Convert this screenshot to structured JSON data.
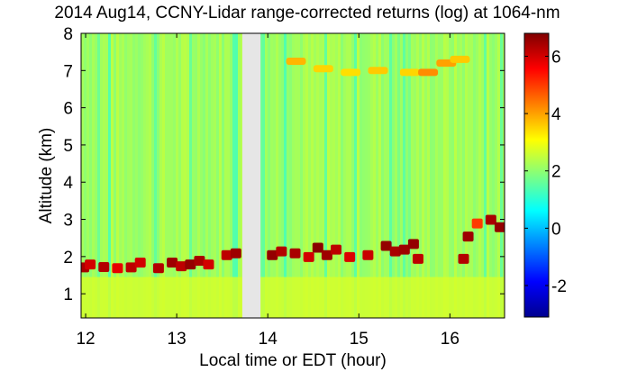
{
  "chart_data": {
    "type": "heatmap",
    "title": "2014 Aug14, CCNY-Lidar range-corrected returns (log) at 1064-nm",
    "xlabel": "Local time or EDT (hour)",
    "ylabel": "Altitude (km)",
    "xlim": [
      11.95,
      16.6
    ],
    "ylim": [
      0.35,
      8.0
    ],
    "xticks": [
      12,
      13,
      14,
      15,
      16
    ],
    "yticks": [
      1,
      2,
      3,
      4,
      5,
      6,
      7,
      8
    ],
    "colorbar": {
      "range": [
        -3.1,
        6.8
      ],
      "ticks": [
        -2,
        0,
        2,
        4,
        6
      ],
      "colormap": "jet"
    },
    "data_gap": {
      "x_start": 13.72,
      "x_end": 13.92,
      "color": "#e6e6e6"
    },
    "background_value": 2.2,
    "aerosol_layer": {
      "description_values": "boundary layer top with high returns",
      "segments": [
        {
          "x": 11.98,
          "y": 1.72,
          "value": 6.4
        },
        {
          "x": 12.05,
          "y": 1.8,
          "value": 6.0
        },
        {
          "x": 12.2,
          "y": 1.73,
          "value": 6.3
        },
        {
          "x": 12.35,
          "y": 1.7,
          "value": 5.8
        },
        {
          "x": 12.5,
          "y": 1.72,
          "value": 6.2
        },
        {
          "x": 12.6,
          "y": 1.85,
          "value": 6.0
        },
        {
          "x": 12.8,
          "y": 1.7,
          "value": 6.3
        },
        {
          "x": 12.95,
          "y": 1.85,
          "value": 6.5
        },
        {
          "x": 13.05,
          "y": 1.75,
          "value": 6.2
        },
        {
          "x": 13.15,
          "y": 1.8,
          "value": 6.6
        },
        {
          "x": 13.25,
          "y": 1.9,
          "value": 6.4
        },
        {
          "x": 13.35,
          "y": 1.8,
          "value": 6.0
        },
        {
          "x": 13.55,
          "y": 2.05,
          "value": 6.2
        },
        {
          "x": 13.65,
          "y": 2.1,
          "value": 6.5
        },
        {
          "x": 14.05,
          "y": 2.05,
          "value": 6.6
        },
        {
          "x": 14.15,
          "y": 2.15,
          "value": 6.3
        },
        {
          "x": 14.3,
          "y": 2.1,
          "value": 6.4
        },
        {
          "x": 14.45,
          "y": 2.0,
          "value": 6.0
        },
        {
          "x": 14.55,
          "y": 2.25,
          "value": 6.7
        },
        {
          "x": 14.65,
          "y": 2.05,
          "value": 6.5
        },
        {
          "x": 14.75,
          "y": 2.2,
          "value": 6.2
        },
        {
          "x": 14.9,
          "y": 2.0,
          "value": 5.9
        },
        {
          "x": 15.1,
          "y": 2.05,
          "value": 6.1
        },
        {
          "x": 15.3,
          "y": 2.3,
          "value": 6.6
        },
        {
          "x": 15.4,
          "y": 2.15,
          "value": 6.4
        },
        {
          "x": 15.5,
          "y": 2.2,
          "value": 6.5
        },
        {
          "x": 15.6,
          "y": 2.35,
          "value": 6.6
        },
        {
          "x": 15.65,
          "y": 1.95,
          "value": 6.2
        },
        {
          "x": 16.15,
          "y": 1.95,
          "value": 6.3
        },
        {
          "x": 16.2,
          "y": 2.55,
          "value": 6.5
        },
        {
          "x": 16.3,
          "y": 2.9,
          "value": 5.0
        },
        {
          "x": 16.45,
          "y": 3.0,
          "value": 6.4
        },
        {
          "x": 16.55,
          "y": 2.8,
          "value": 6.6
        }
      ]
    },
    "upper_layers": [
      {
        "x": 14.3,
        "y": 7.25,
        "value": 3.8
      },
      {
        "x": 14.6,
        "y": 7.05,
        "value": 3.5
      },
      {
        "x": 14.9,
        "y": 6.95,
        "value": 3.4
      },
      {
        "x": 15.2,
        "y": 7.0,
        "value": 3.6
      },
      {
        "x": 15.55,
        "y": 6.95,
        "value": 3.5
      },
      {
        "x": 15.75,
        "y": 6.95,
        "value": 4.2
      },
      {
        "x": 15.95,
        "y": 7.2,
        "value": 4.0
      },
      {
        "x": 16.1,
        "y": 7.3,
        "value": 3.6
      }
    ],
    "surface_value": 2.7
  }
}
